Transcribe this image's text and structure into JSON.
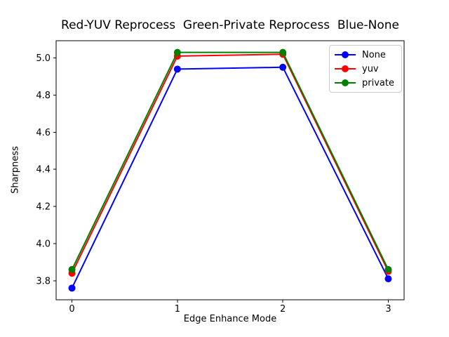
{
  "chart_data": {
    "type": "line",
    "title": "Red-YUV Reprocess  Green-Private Reprocess  Blue-None",
    "xlabel": "Edge Enhance Mode",
    "ylabel": "Sharpness",
    "x": [
      0,
      1,
      2,
      3
    ],
    "series": [
      {
        "name": "None",
        "color": "#0000ff",
        "values": [
          3.76,
          4.94,
          4.95,
          3.81
        ]
      },
      {
        "name": "yuv",
        "color": "#ff0000",
        "values": [
          3.84,
          5.01,
          5.02,
          3.85
        ]
      },
      {
        "name": "private",
        "color": "#008000",
        "values": [
          3.86,
          5.03,
          5.03,
          3.86
        ]
      }
    ],
    "xlim": [
      -0.15,
      3.15
    ],
    "ylim": [
      3.697,
      5.093
    ],
    "xticks": [
      0,
      1,
      2,
      3
    ],
    "xtick_labels": [
      "0",
      "1",
      "2",
      "3"
    ],
    "yticks": [
      3.8,
      4.0,
      4.2,
      4.4,
      4.6,
      4.8,
      5.0
    ],
    "ytick_labels": [
      "3.8",
      "4.0",
      "4.2",
      "4.4",
      "4.6",
      "4.8",
      "5.0"
    ],
    "grid": false,
    "legend_position": "upper right",
    "marker": "circle",
    "axis_color": "#000000",
    "background_color": "#ffffff"
  }
}
